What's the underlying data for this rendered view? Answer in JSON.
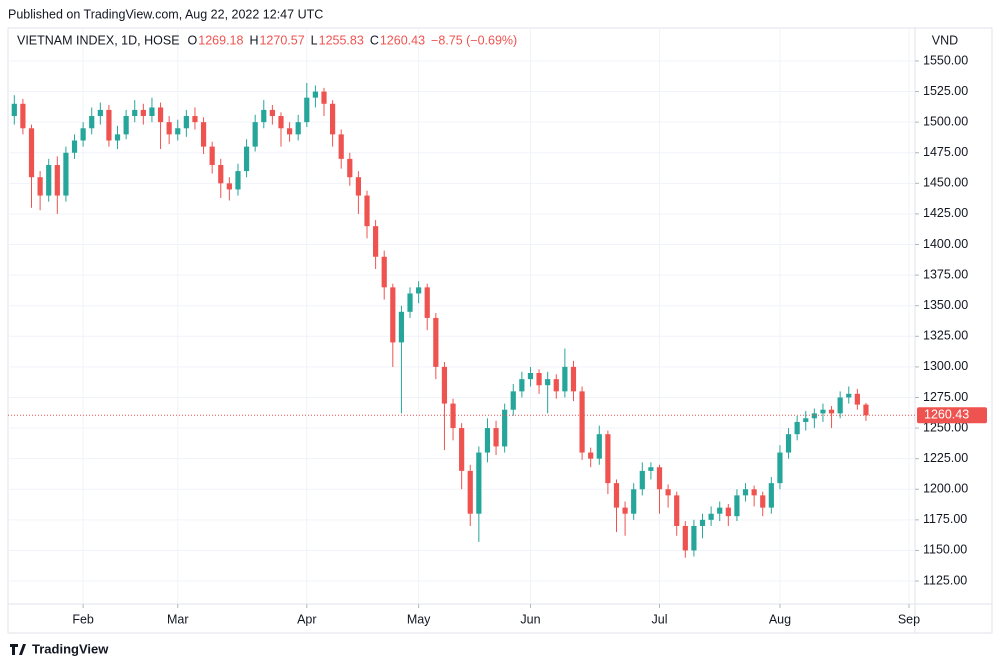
{
  "published": "Published on TradingView.com, Aug 22, 2022 12:47 UTC",
  "footer": "TradingView",
  "chart_data": {
    "type": "candlestick",
    "legend": {
      "name": "VIETNAM INDEX, 1D, HOSE",
      "items": [
        {
          "key": "O",
          "value": "1269.18"
        },
        {
          "key": "H",
          "value": "1270.57"
        },
        {
          "key": "L",
          "value": "1255.83"
        },
        {
          "key": "C",
          "value": "1260.43"
        }
      ],
      "change": "−8.75 (−0.69%)"
    },
    "y_axis_label": "VND",
    "last_price_label": "1260.43",
    "up_color": "#26a69a",
    "down_color": "#ef5350",
    "grid": true,
    "xlim": [
      -0.5,
      104.7
    ],
    "xticks": [
      {
        "value": 8,
        "label": "Feb"
      },
      {
        "value": 19,
        "label": "Mar"
      },
      {
        "value": 34,
        "label": "Apr"
      },
      {
        "value": 47,
        "label": "May"
      },
      {
        "value": 60,
        "label": "Jun"
      },
      {
        "value": 75,
        "label": "Jul"
      },
      {
        "value": 89,
        "label": "Aug"
      },
      {
        "value": 104,
        "label": "Sep"
      }
    ],
    "ylim": [
      1109.5,
      1575.3
    ],
    "yticks": [
      {
        "value": 1125,
        "label": "1125.00"
      },
      {
        "value": 1150,
        "label": "1150.00"
      },
      {
        "value": 1175,
        "label": "1175.00"
      },
      {
        "value": 1200,
        "label": "1200.00"
      },
      {
        "value": 1225,
        "label": "1225.00"
      },
      {
        "value": 1250,
        "label": "1250.00"
      },
      {
        "value": 1275,
        "label": "1275.00"
      },
      {
        "value": 1300,
        "label": "1300.00"
      },
      {
        "value": 1325,
        "label": "1325.00"
      },
      {
        "value": 1350,
        "label": "1350.00"
      },
      {
        "value": 1375,
        "label": "1375.00"
      },
      {
        "value": 1400,
        "label": "1400.00"
      },
      {
        "value": 1425,
        "label": "1425.00"
      },
      {
        "value": 1450,
        "label": "1450.00"
      },
      {
        "value": 1475,
        "label": "1475.00"
      },
      {
        "value": 1500,
        "label": "1500.00"
      },
      {
        "value": 1525,
        "label": "1525.00"
      },
      {
        "value": 1550,
        "label": "1550.00"
      }
    ],
    "candles": [
      [
        1505,
        1522,
        1498,
        1515
      ],
      [
        1515,
        1519,
        1490,
        1495
      ],
      [
        1495,
        1498,
        1430,
        1455
      ],
      [
        1455,
        1460,
        1428,
        1440
      ],
      [
        1440,
        1470,
        1435,
        1465
      ],
      [
        1465,
        1472,
        1425,
        1440
      ],
      [
        1440,
        1480,
        1435,
        1475
      ],
      [
        1475,
        1490,
        1470,
        1485
      ],
      [
        1485,
        1500,
        1480,
        1495
      ],
      [
        1495,
        1512,
        1490,
        1505
      ],
      [
        1505,
        1516,
        1498,
        1510
      ],
      [
        1510,
        1514,
        1480,
        1485
      ],
      [
        1485,
        1497,
        1478,
        1490
      ],
      [
        1490,
        1510,
        1486,
        1505
      ],
      [
        1505,
        1518,
        1500,
        1510
      ],
      [
        1510,
        1515,
        1498,
        1505
      ],
      [
        1505,
        1520,
        1500,
        1512
      ],
      [
        1512,
        1516,
        1478,
        1500
      ],
      [
        1500,
        1505,
        1482,
        1490
      ],
      [
        1490,
        1502,
        1485,
        1495
      ],
      [
        1495,
        1510,
        1488,
        1505
      ],
      [
        1505,
        1512,
        1494,
        1500
      ],
      [
        1500,
        1504,
        1474,
        1480
      ],
      [
        1480,
        1484,
        1458,
        1465
      ],
      [
        1465,
        1470,
        1438,
        1450
      ],
      [
        1450,
        1455,
        1436,
        1445
      ],
      [
        1445,
        1466,
        1440,
        1460
      ],
      [
        1460,
        1486,
        1455,
        1480
      ],
      [
        1480,
        1506,
        1476,
        1500
      ],
      [
        1500,
        1518,
        1495,
        1510
      ],
      [
        1510,
        1514,
        1498,
        1505
      ],
      [
        1505,
        1508,
        1480,
        1495
      ],
      [
        1495,
        1500,
        1484,
        1490
      ],
      [
        1490,
        1506,
        1485,
        1500
      ],
      [
        1500,
        1532,
        1496,
        1520
      ],
      [
        1520,
        1530,
        1512,
        1525
      ],
      [
        1525,
        1528,
        1505,
        1515
      ],
      [
        1515,
        1518,
        1480,
        1490
      ],
      [
        1490,
        1494,
        1462,
        1470
      ],
      [
        1470,
        1475,
        1448,
        1455
      ],
      [
        1455,
        1460,
        1425,
        1440
      ],
      [
        1440,
        1444,
        1405,
        1415
      ],
      [
        1415,
        1420,
        1380,
        1390
      ],
      [
        1390,
        1395,
        1355,
        1365
      ],
      [
        1365,
        1368,
        1300,
        1320
      ],
      [
        1320,
        1350,
        1262,
        1345
      ],
      [
        1345,
        1365,
        1340,
        1360
      ],
      [
        1360,
        1370,
        1352,
        1365
      ],
      [
        1365,
        1368,
        1330,
        1340
      ],
      [
        1340,
        1344,
        1290,
        1300
      ],
      [
        1300,
        1304,
        1232,
        1270
      ],
      [
        1270,
        1274,
        1240,
        1250
      ],
      [
        1250,
        1254,
        1200,
        1215
      ],
      [
        1215,
        1220,
        1170,
        1180
      ],
      [
        1180,
        1235,
        1157,
        1230
      ],
      [
        1230,
        1258,
        1222,
        1250
      ],
      [
        1250,
        1256,
        1228,
        1235
      ],
      [
        1235,
        1270,
        1230,
        1265
      ],
      [
        1265,
        1286,
        1260,
        1280
      ],
      [
        1280,
        1296,
        1275,
        1290
      ],
      [
        1290,
        1300,
        1284,
        1295
      ],
      [
        1295,
        1298,
        1278,
        1285
      ],
      [
        1285,
        1296,
        1262,
        1290
      ],
      [
        1290,
        1294,
        1274,
        1280
      ],
      [
        1280,
        1315,
        1275,
        1300
      ],
      [
        1300,
        1305,
        1272,
        1280
      ],
      [
        1280,
        1284,
        1224,
        1230
      ],
      [
        1230,
        1234,
        1218,
        1225
      ],
      [
        1225,
        1252,
        1220,
        1245
      ],
      [
        1245,
        1248,
        1196,
        1205
      ],
      [
        1205,
        1208,
        1165,
        1185
      ],
      [
        1185,
        1190,
        1162,
        1180
      ],
      [
        1180,
        1205,
        1175,
        1200
      ],
      [
        1200,
        1222,
        1195,
        1215
      ],
      [
        1215,
        1222,
        1208,
        1218
      ],
      [
        1218,
        1220,
        1180,
        1200
      ],
      [
        1200,
        1204,
        1185,
        1195
      ],
      [
        1195,
        1198,
        1162,
        1170
      ],
      [
        1170,
        1174,
        1144,
        1150
      ],
      [
        1150,
        1175,
        1145,
        1170
      ],
      [
        1170,
        1180,
        1160,
        1175
      ],
      [
        1175,
        1186,
        1170,
        1180
      ],
      [
        1180,
        1190,
        1174,
        1185
      ],
      [
        1185,
        1188,
        1170,
        1178
      ],
      [
        1178,
        1200,
        1174,
        1195
      ],
      [
        1195,
        1205,
        1190,
        1200
      ],
      [
        1200,
        1203,
        1186,
        1195
      ],
      [
        1195,
        1198,
        1178,
        1185
      ],
      [
        1185,
        1210,
        1180,
        1205
      ],
      [
        1205,
        1236,
        1200,
        1230
      ],
      [
        1230,
        1250,
        1225,
        1245
      ],
      [
        1245,
        1260,
        1240,
        1255
      ],
      [
        1255,
        1264,
        1248,
        1258
      ],
      [
        1258,
        1266,
        1250,
        1262
      ],
      [
        1262,
        1270,
        1255,
        1265
      ],
      [
        1265,
        1268,
        1250,
        1262
      ],
      [
        1262,
        1280,
        1258,
        1275
      ],
      [
        1275,
        1284,
        1270,
        1278
      ],
      [
        1278,
        1282,
        1265,
        1269.18
      ],
      [
        1269.18,
        1270.57,
        1255.83,
        1260.43
      ]
    ]
  }
}
